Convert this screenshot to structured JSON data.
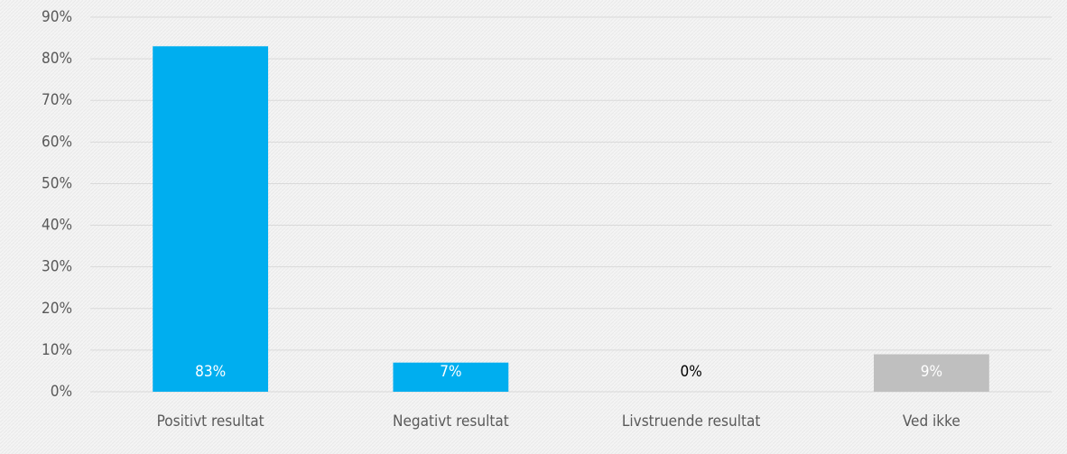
{
  "chart_data": {
    "type": "bar",
    "categories": [
      "Positivt resultat",
      "Negativt resultat",
      "Livstruende resultat",
      "Ved ikke"
    ],
    "values": [
      83,
      7,
      0,
      9
    ],
    "value_labels": [
      "83%",
      "7%",
      "0%",
      "9%"
    ],
    "colors": [
      "#00aeef",
      "#00aeef",
      "#00aeef",
      "#bfbfbf"
    ],
    "ylim": [
      0,
      90
    ],
    "yticks": [
      {
        "value": 0,
        "label": "0%"
      },
      {
        "value": 10,
        "label": "10%"
      },
      {
        "value": 20,
        "label": "20%"
      },
      {
        "value": 30,
        "label": "30%"
      },
      {
        "value": 40,
        "label": "40%"
      },
      {
        "value": 50,
        "label": "50%"
      },
      {
        "value": 60,
        "label": "60%"
      },
      {
        "value": 70,
        "label": "70%"
      },
      {
        "value": 80,
        "label": "80%"
      },
      {
        "value": 90,
        "label": "90%"
      }
    ],
    "grid": true
  }
}
